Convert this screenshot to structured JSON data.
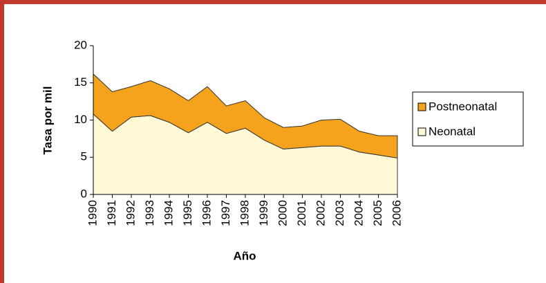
{
  "chart_data": {
    "type": "stacked_area",
    "xlabel": "Año",
    "ylabel": "Tasa por mil",
    "categories": [
      "1990",
      "1991",
      "1992",
      "1993",
      "1994",
      "1995",
      "1996",
      "1997",
      "1998",
      "1999",
      "2000",
      "2001",
      "2002",
      "2003",
      "2004",
      "2005",
      "2006"
    ],
    "series": [
      {
        "name": "Neonatal",
        "color": "#fff9d6",
        "values": [
          10.8,
          8.5,
          10.4,
          10.6,
          9.7,
          8.3,
          9.7,
          8.2,
          8.9,
          7.3,
          6.1,
          6.3,
          6.5,
          6.5,
          5.7,
          5.3,
          4.9
        ]
      },
      {
        "name": "Postneonatal",
        "color": "#f5a21c",
        "values": [
          5.4,
          5.3,
          4.1,
          4.7,
          4.5,
          4.3,
          4.8,
          3.7,
          3.7,
          3.0,
          2.9,
          2.9,
          3.5,
          3.6,
          2.8,
          2.6,
          3.0
        ]
      }
    ],
    "ylim": [
      0,
      20
    ],
    "yticks": [
      0,
      5,
      10,
      15,
      20
    ],
    "legend": "right"
  }
}
